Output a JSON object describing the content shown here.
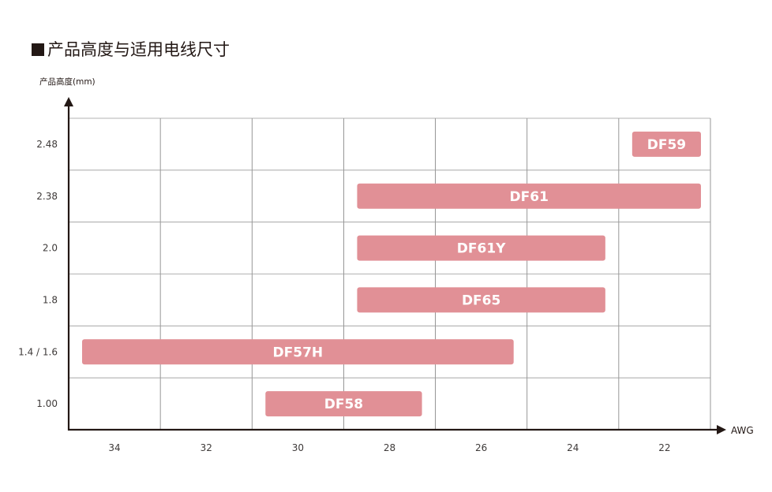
{
  "title": "产品高度与适用电线尺寸",
  "chart_data": {
    "type": "range-bar",
    "title": "产品高度与适用电线尺寸",
    "ylabel": "产品高度(mm)",
    "xlabel": "AWG",
    "x_categories": [
      "34",
      "32",
      "30",
      "28",
      "26",
      "24",
      "22"
    ],
    "y_categories": [
      "2.48",
      "2.38",
      "2.0",
      "1.8",
      "1.4 / 1.6",
      "1.00"
    ],
    "grid": true,
    "bar_color": "#e19096",
    "bars": [
      {
        "name": "DF59",
        "row": "2.48",
        "from": "22",
        "to": "22"
      },
      {
        "name": "DF61",
        "row": "2.38",
        "from": "28",
        "to": "22"
      },
      {
        "name": "DF61Y",
        "row": "2.0",
        "from": "28",
        "to": "24"
      },
      {
        "name": "DF65",
        "row": "1.8",
        "from": "28",
        "to": "24"
      },
      {
        "name": "DF57H",
        "row": "1.4 / 1.6",
        "from": "34",
        "to": "26"
      },
      {
        "name": "DF58",
        "row": "1.00",
        "from": "30",
        "to": "28"
      }
    ]
  }
}
